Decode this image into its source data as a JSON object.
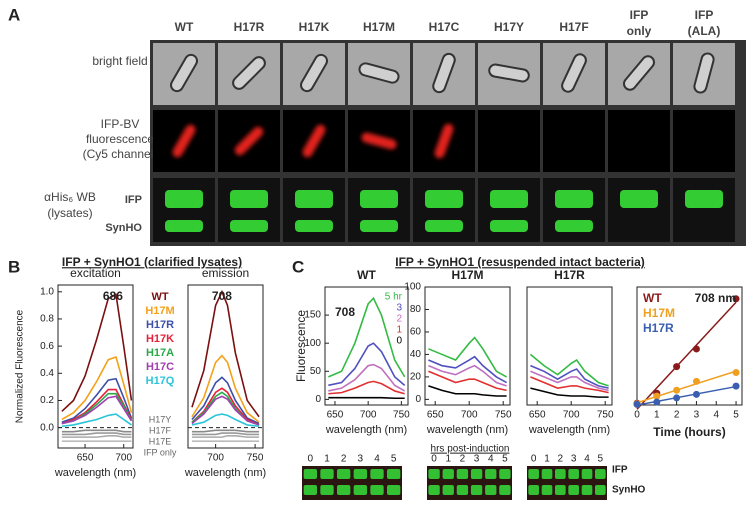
{
  "panel_a": {
    "letter": "A",
    "columns": [
      "WT",
      "H17R",
      "H17K",
      "H17M",
      "H17C",
      "H17Y",
      "H17F",
      "IFP only",
      "IFP (ALA)"
    ],
    "rows": {
      "bright_field": "bright field",
      "fluorescence": [
        "IFP-BV",
        "fluorescence",
        "(Cy5 channel)"
      ],
      "western": [
        "αHis₆ WB",
        "(lysates)"
      ],
      "bands": [
        "IFP",
        "SynHO"
      ]
    }
  },
  "panel_b": {
    "letter": "B",
    "title": "IFP + SynHO1 (clarified lysates)"
  },
  "panel_c": {
    "letter": "C",
    "title": "IFP + SynHO1 (resuspended intact bacteria)",
    "gels": {
      "lanes": [
        0,
        1,
        2,
        3,
        4,
        5
      ],
      "caption": "hrs post-induction",
      "bands": [
        "IFP",
        "SynHO"
      ]
    }
  },
  "chart_data": [
    {
      "type": "line",
      "title": "excitation",
      "annotation": "686",
      "ylabel": "Normalized Fluorescence",
      "xlabel": "wavelength (nm)",
      "x": [
        620,
        635,
        650,
        665,
        680,
        690,
        700,
        710
      ],
      "xlim": [
        615,
        712
      ],
      "xticks": [
        650,
        700
      ],
      "ylim": [
        -0.15,
        1.05
      ],
      "yticks": [
        0.0,
        0.2,
        0.4,
        0.6,
        0.8,
        1.0
      ],
      "zero_line": true,
      "series": [
        {
          "name": "WT",
          "color": "#7b1010",
          "values": [
            0.12,
            0.2,
            0.38,
            0.65,
            0.95,
            0.98,
            0.6,
            0.2
          ]
        },
        {
          "name": "H17M",
          "color": "#f4a11c",
          "values": [
            0.06,
            0.11,
            0.2,
            0.34,
            0.5,
            0.52,
            0.32,
            0.11
          ]
        },
        {
          "name": "H17R",
          "color": "#3b4fa8",
          "values": [
            0.04,
            0.07,
            0.14,
            0.24,
            0.35,
            0.36,
            0.22,
            0.07
          ]
        },
        {
          "name": "H17K",
          "color": "#e8203a",
          "values": [
            0.03,
            0.06,
            0.11,
            0.19,
            0.28,
            0.28,
            0.17,
            0.06
          ]
        },
        {
          "name": "H17A",
          "color": "#2aa84a",
          "values": [
            0.03,
            0.05,
            0.1,
            0.17,
            0.25,
            0.25,
            0.16,
            0.05
          ]
        },
        {
          "name": "H17C",
          "color": "#a23fb0",
          "values": [
            0.03,
            0.05,
            0.09,
            0.15,
            0.22,
            0.23,
            0.14,
            0.05
          ]
        },
        {
          "name": "H17Q",
          "color": "#2cc4d8",
          "values": [
            0.01,
            0.02,
            0.04,
            0.06,
            0.09,
            0.1,
            0.06,
            0.02
          ]
        },
        {
          "name": "H17Y",
          "color": "#8a8a8a",
          "values": [
            -0.03,
            -0.03,
            -0.02,
            -0.02,
            -0.02,
            -0.02,
            -0.03,
            -0.03
          ]
        },
        {
          "name": "H17F",
          "color": "#9a9a9a",
          "values": [
            -0.05,
            -0.05,
            -0.05,
            -0.04,
            -0.04,
            -0.04,
            -0.05,
            -0.05
          ]
        },
        {
          "name": "H17E",
          "color": "#aaaaaa",
          "values": [
            -0.07,
            -0.07,
            -0.07,
            -0.07,
            -0.06,
            -0.06,
            -0.07,
            -0.07
          ]
        },
        {
          "name": "IFP only",
          "color": "#bbbbbb",
          "values": [
            -0.1,
            -0.1,
            -0.1,
            -0.1,
            -0.1,
            -0.1,
            -0.1,
            -0.1
          ]
        }
      ]
    },
    {
      "type": "line",
      "title": "emission",
      "annotation": "708",
      "xlabel": "wavelength (nm)",
      "x": [
        670,
        685,
        700,
        708,
        715,
        725,
        740,
        755
      ],
      "xlim": [
        665,
        760
      ],
      "xticks": [
        700,
        750
      ],
      "ylim": [
        -0.15,
        1.05
      ],
      "zero_line": true,
      "series": [
        {
          "color": "#7b1010",
          "values": [
            0.15,
            0.42,
            0.9,
            1.0,
            0.9,
            0.55,
            0.2,
            0.08
          ]
        },
        {
          "color": "#f4a11c",
          "values": [
            0.08,
            0.22,
            0.48,
            0.53,
            0.48,
            0.29,
            0.11,
            0.04
          ]
        },
        {
          "color": "#3b4fa8",
          "values": [
            0.06,
            0.16,
            0.33,
            0.37,
            0.33,
            0.2,
            0.07,
            0.03
          ]
        },
        {
          "color": "#e8203a",
          "values": [
            0.04,
            0.12,
            0.26,
            0.29,
            0.26,
            0.16,
            0.06,
            0.02
          ]
        },
        {
          "color": "#2aa84a",
          "values": [
            0.04,
            0.11,
            0.23,
            0.26,
            0.23,
            0.14,
            0.05,
            0.02
          ]
        },
        {
          "color": "#a23fb0",
          "values": [
            0.03,
            0.1,
            0.21,
            0.23,
            0.21,
            0.13,
            0.05,
            0.02
          ]
        },
        {
          "color": "#2cc4d8",
          "values": [
            0.02,
            0.04,
            0.09,
            0.1,
            0.09,
            0.06,
            0.02,
            0.01
          ]
        },
        {
          "color": "#8a8a8a",
          "values": [
            -0.03,
            -0.03,
            -0.02,
            -0.02,
            -0.02,
            -0.02,
            -0.03,
            -0.03
          ]
        },
        {
          "color": "#9a9a9a",
          "values": [
            -0.05,
            -0.05,
            -0.05,
            -0.04,
            -0.04,
            -0.04,
            -0.05,
            -0.05
          ]
        },
        {
          "color": "#aaaaaa",
          "values": [
            -0.07,
            -0.07,
            -0.07,
            -0.07,
            -0.06,
            -0.06,
            -0.07,
            -0.07
          ]
        },
        {
          "color": "#bbbbbb",
          "values": [
            -0.1,
            -0.1,
            -0.1,
            -0.1,
            -0.1,
            -0.1,
            -0.1,
            -0.1
          ]
        }
      ]
    },
    {
      "type": "line",
      "title": "WT",
      "annotation": "708",
      "ylabel": "Fluorescence",
      "xlabel": "wavelength (nm)",
      "x": [
        640,
        660,
        680,
        700,
        708,
        720,
        740,
        755
      ],
      "xlim": [
        635,
        760
      ],
      "xticks": [
        650,
        700,
        750
      ],
      "ylim": [
        -10,
        200
      ],
      "yticks": [
        0,
        50,
        100,
        150
      ],
      "series": [
        {
          "name": "5 hr",
          "color": "#33bb44",
          "values": [
            40,
            50,
            100,
            170,
            180,
            150,
            70,
            40
          ]
        },
        {
          "name": "3",
          "color": "#5050c0",
          "values": [
            25,
            30,
            55,
            95,
            100,
            85,
            40,
            25
          ]
        },
        {
          "name": "2",
          "color": "#c070c0",
          "values": [
            15,
            20,
            35,
            60,
            62,
            55,
            25,
            15
          ]
        },
        {
          "name": "1",
          "color": "#e03030",
          "values": [
            10,
            12,
            20,
            30,
            32,
            28,
            15,
            10
          ]
        },
        {
          "name": "0",
          "color": "#000000",
          "values": [
            3,
            3,
            3,
            3,
            3,
            3,
            2,
            2
          ]
        }
      ]
    },
    {
      "type": "line",
      "title": "H17M",
      "xlabel": "wavelength (nm)",
      "x": [
        640,
        660,
        680,
        700,
        708,
        720,
        740,
        755
      ],
      "xlim": [
        635,
        760
      ],
      "xticks": [
        650,
        700,
        750
      ],
      "ylim": [
        -5,
        100
      ],
      "yticks": [
        0,
        20,
        40,
        60,
        80,
        100
      ],
      "series": [
        {
          "color": "#33bb44",
          "values": [
            45,
            40,
            35,
            50,
            55,
            45,
            25,
            20
          ]
        },
        {
          "color": "#5050c0",
          "values": [
            35,
            30,
            28,
            35,
            38,
            30,
            20,
            15
          ]
        },
        {
          "color": "#c070c0",
          "values": [
            30,
            25,
            22,
            28,
            30,
            25,
            15,
            12
          ]
        },
        {
          "color": "#e03030",
          "values": [
            25,
            20,
            15,
            18,
            18,
            15,
            10,
            8
          ]
        },
        {
          "color": "#000000",
          "values": [
            12,
            8,
            5,
            5,
            5,
            4,
            3,
            3
          ]
        }
      ]
    },
    {
      "type": "line",
      "title": "H17R",
      "xlabel": "wavelength (nm)",
      "x": [
        640,
        660,
        680,
        700,
        708,
        720,
        740,
        755
      ],
      "xlim": [
        635,
        760
      ],
      "xticks": [
        650,
        700,
        750
      ],
      "ylim": [
        -5,
        100
      ],
      "series": [
        {
          "color": "#33bb44",
          "values": [
            40,
            30,
            22,
            32,
            35,
            25,
            15,
            12
          ]
        },
        {
          "color": "#5050c0",
          "values": [
            30,
            25,
            18,
            25,
            27,
            18,
            12,
            10
          ]
        },
        {
          "color": "#c070c0",
          "values": [
            25,
            20,
            15,
            20,
            20,
            15,
            10,
            8
          ]
        },
        {
          "color": "#e03030",
          "values": [
            20,
            15,
            10,
            12,
            12,
            10,
            8,
            6
          ]
        },
        {
          "color": "#000000",
          "values": [
            10,
            7,
            4,
            3,
            3,
            3,
            2,
            2
          ]
        }
      ]
    },
    {
      "type": "scatter",
      "annotation": "708 nm",
      "xlabel": "Time (hours)",
      "fit": true,
      "xlim": [
        0,
        5.3
      ],
      "xticks": [
        0,
        1,
        2,
        3,
        4,
        5
      ],
      "ylim": [
        0,
        200
      ],
      "series": [
        {
          "name": "WT",
          "color": "#8b1a1a",
          "x": [
            0,
            1,
            2,
            3,
            5
          ],
          "values": [
            3,
            20,
            65,
            95,
            180
          ]
        },
        {
          "name": "H17M",
          "color": "#f0a020",
          "x": [
            0,
            1,
            2,
            3,
            5
          ],
          "values": [
            2,
            15,
            25,
            40,
            55
          ]
        },
        {
          "name": "H17R",
          "color": "#3a5fb0",
          "x": [
            0,
            1,
            2,
            3,
            5
          ],
          "values": [
            1,
            5,
            12,
            18,
            32
          ]
        }
      ]
    }
  ]
}
